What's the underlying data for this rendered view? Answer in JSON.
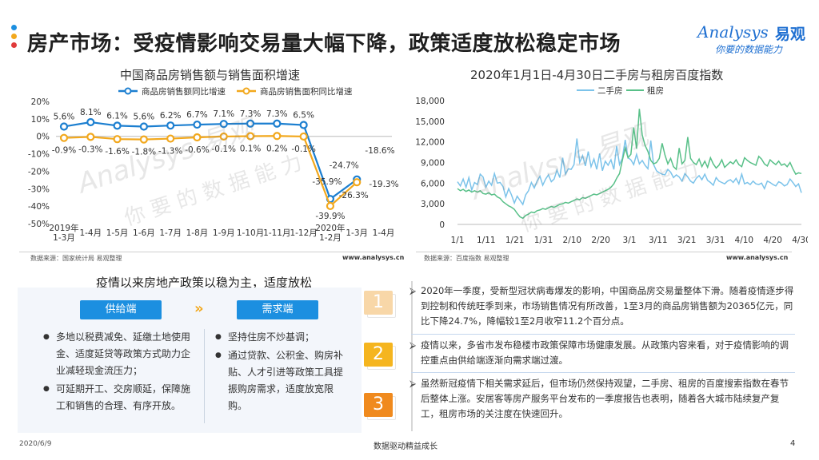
{
  "header": {
    "title": "房产市场：受疫情影响交易量大幅下降，政策适度放松稳定市场",
    "dot_colors": [
      "#1c8fe0",
      "#f2a81d",
      "#e03b3b"
    ]
  },
  "brand": {
    "name": "Analysys",
    "cn": "易观",
    "slogan": "你要的数据能力"
  },
  "chart_data": [
    {
      "type": "line",
      "title": "中国商品房销售额与销售面积增速",
      "categories": [
        "2019年1-3月",
        "1-4月",
        "1-5月",
        "1-6月",
        "1-7月",
        "1-8月",
        "1-9月",
        "1-10月",
        "1-11月",
        "1-12月",
        "2020年1-2月",
        "1-3月",
        "1-4月"
      ],
      "category_lines": [
        [
          "2019年",
          "1-3月"
        ],
        [
          "1-4月"
        ],
        [
          "1-5月"
        ],
        [
          "1-6月"
        ],
        [
          "1-7月"
        ],
        [
          "1-8月"
        ],
        [
          "1-9月"
        ],
        [
          "1-10月"
        ],
        [
          "1-11月"
        ],
        [
          "1-12月"
        ],
        [
          "2020年",
          "1-2月"
        ],
        [
          "1-3月"
        ],
        [
          "1-4月"
        ]
      ],
      "series": [
        {
          "name": "商品房销售额同比增速",
          "color": "#1c7fd0",
          "values": [
            5.6,
            8.1,
            6.1,
            5.6,
            6.2,
            6.7,
            7.1,
            7.3,
            7.3,
            6.5,
            -35.9,
            -24.7,
            -18.6
          ],
          "labels": [
            "5.6%",
            "8.1%",
            "6.1%",
            "5.6%",
            "6.2%",
            "6.7%",
            "7.1%",
            "7.3%",
            "7.3%",
            "6.5%",
            "-35.9%",
            "-24.7%",
            "-18.6%"
          ]
        },
        {
          "name": "商品房销售面积同比增速",
          "color": "#f2a81d",
          "values": [
            -0.9,
            -0.3,
            -1.6,
            -1.8,
            -1.3,
            -0.6,
            -0.1,
            0.1,
            0.2,
            -0.1,
            -39.9,
            -26.3,
            -19.3
          ],
          "labels": [
            "-0.9%",
            "-0.3%",
            "-1.6%",
            "-1.8%",
            "-1.3%",
            "-0.6%",
            "-0.1%",
            "0.1%",
            "0.2%",
            "-0.1%",
            "-39.9%",
            "-26.3%",
            "-19.3%"
          ]
        }
      ],
      "ylim": [
        -50,
        20
      ],
      "yticks": [
        "20%",
        "10%",
        "0%",
        "-10%",
        "-20%",
        "-30%",
        "-40%",
        "-50%"
      ],
      "ytick_values": [
        20,
        10,
        0,
        -10,
        -20,
        -30,
        -40,
        -50
      ],
      "legend": "top",
      "source": "数据来源：国家统计局 易观整理",
      "url": "www.analysys.cn"
    },
    {
      "type": "line",
      "title": "2020年1月1日-4月30日二手房与租房百度指数",
      "xticks": [
        "1/1",
        "1/11",
        "1/21",
        "1/31",
        "2/10",
        "2/20",
        "3/1",
        "3/11",
        "3/21",
        "3/31",
        "4/10",
        "4/20",
        "4/30"
      ],
      "ylim": [
        0,
        18000
      ],
      "yticks": [
        "18,000",
        "15,000",
        "12,000",
        "9,000",
        "6,000",
        "3,000",
        "0"
      ],
      "ytick_values": [
        18000,
        15000,
        12000,
        9000,
        6000,
        3000,
        0
      ],
      "legend": "top",
      "series": [
        {
          "name": "二手房",
          "color": "#7cc3ea",
          "values": [
            6200,
            5600,
            6600,
            5400,
            6800,
            5000,
            6100,
            5800,
            7300,
            6900,
            5400,
            6300,
            5700,
            7400,
            6000,
            6100,
            5500,
            4000,
            5200,
            4300,
            3100,
            4100,
            3500,
            2900,
            4300,
            4900,
            6100,
            5300,
            6300,
            7000,
            5700,
            6600,
            7200,
            6200,
            6600,
            7900,
            6800,
            9700,
            7300,
            8100,
            8000,
            8700,
            12500,
            9000,
            10000,
            8500,
            10600,
            8400,
            9500,
            8000,
            10300,
            7800,
            9200,
            8600,
            9400,
            8000,
            11400,
            8700,
            9600,
            12300,
            9700,
            9400,
            8700,
            10200,
            8800,
            9300,
            8600,
            8100,
            12200,
            8700,
            7800,
            7500,
            7300,
            7200,
            8000,
            7600,
            6800,
            7200,
            6900,
            6300,
            7400,
            6900,
            6300,
            6000,
            6700,
            7100,
            6500,
            7300,
            6400,
            6100,
            5700,
            6800,
            6300,
            6100,
            5900,
            6300,
            6500,
            6100,
            6700,
            5900,
            7300,
            5900,
            6100,
            5800,
            6300,
            5900,
            5800,
            6000,
            5200,
            6300,
            6100,
            5800,
            5600,
            6200,
            6000,
            5600,
            5800,
            6600,
            6100,
            5500,
            5900,
            4600
          ]
        },
        {
          "name": "租房",
          "color": "#58c088",
          "values": [
            5200,
            4900,
            5100,
            4800,
            5000,
            4700,
            4900,
            4700,
            4900,
            4500,
            4400,
            4600,
            4300,
            4400,
            4000,
            3800,
            3300,
            3000,
            2700,
            2500,
            2200,
            1600,
            1100,
            900,
            1300,
            1500,
            1800,
            1700,
            2000,
            2100,
            2300,
            2200,
            2400,
            2600,
            2500,
            2700,
            2900,
            3000,
            3200,
            3100,
            3300,
            3500,
            3700,
            3600,
            3900,
            3800,
            4000,
            4200,
            4400,
            4300,
            4500,
            4700,
            4900,
            5100,
            5400,
            5900,
            6700,
            7400,
            9300,
            11100,
            9700,
            10200,
            14100,
            11000,
            16800,
            13000,
            11500,
            10600,
            9300,
            8800,
            9000,
            9600,
            11800,
            10100,
            8800,
            9600,
            8400,
            8000,
            11100,
            8800,
            9300,
            12700,
            9600,
            9000,
            8700,
            9500,
            8400,
            9200,
            8300,
            9700,
            8800,
            8200,
            8600,
            9400,
            8300,
            8700,
            9100,
            8800,
            9400,
            8700,
            8400,
            9700,
            9300,
            9000,
            8800,
            8600,
            9900,
            9500,
            8800,
            8500,
            9400,
            9000,
            8700,
            9200,
            8600,
            8800,
            8400,
            9000,
            8100,
            7300,
            7500,
            7400
          ]
        }
      ],
      "source": "数据来源：百度指数 易观整理",
      "url": "www.analysys.cn"
    }
  ],
  "policy": {
    "title": "疫情以来房地产政策以稳为主，适度放松",
    "supply_label": "供给端",
    "demand_label": "需求端",
    "supply_items": [
      "多地以税费减免、延缴土地使用金、适度延贷等政策方式助力企业减轻现金流压力；",
      "可延期开工、交房顺延，保障施工和销售的合理、有序开放。"
    ],
    "demand_items": [
      "坚持住房不炒基调；",
      "通过贷款、公积金、购房补贴、人才引进等政策工具提振购房需求，适度放宽限购。"
    ]
  },
  "points": [
    {
      "num": "1",
      "color": "#f8d7a8",
      "text": "2020年一季度，受新型冠状病毒爆发的影响，中国商品房交易量整体下滑。随着疫情逐步得到控制和传统旺季到来，市场销售情况有所改善，1至3月的商品房销售额为20365亿元，同比下降24.7%，降幅较1至2月收窄11.2个百分点。"
    },
    {
      "num": "2",
      "color": "#f5b51f",
      "text": "疫情以来，多省市发布稳楼市政策保障市场健康发展。从政策内容来看，对于疫情影响的调控重点由供给端逐渐向需求端过渡。"
    },
    {
      "num": "3",
      "color": "#f08a1e",
      "text": "虽然新冠疫情下相关需求延后，但市场仍然保持观望，二手房、租房的百度搜索指数在春节后整体上涨。安居客等房产服务平台发布的一季度报告也表明，随着各大城市陆续复产复工，租房市场的关注度在快速回升。"
    }
  ],
  "point_mark": "⮚",
  "footer": {
    "date": "2020/6/9",
    "center": "数据驱动精益成长",
    "page": "4"
  }
}
